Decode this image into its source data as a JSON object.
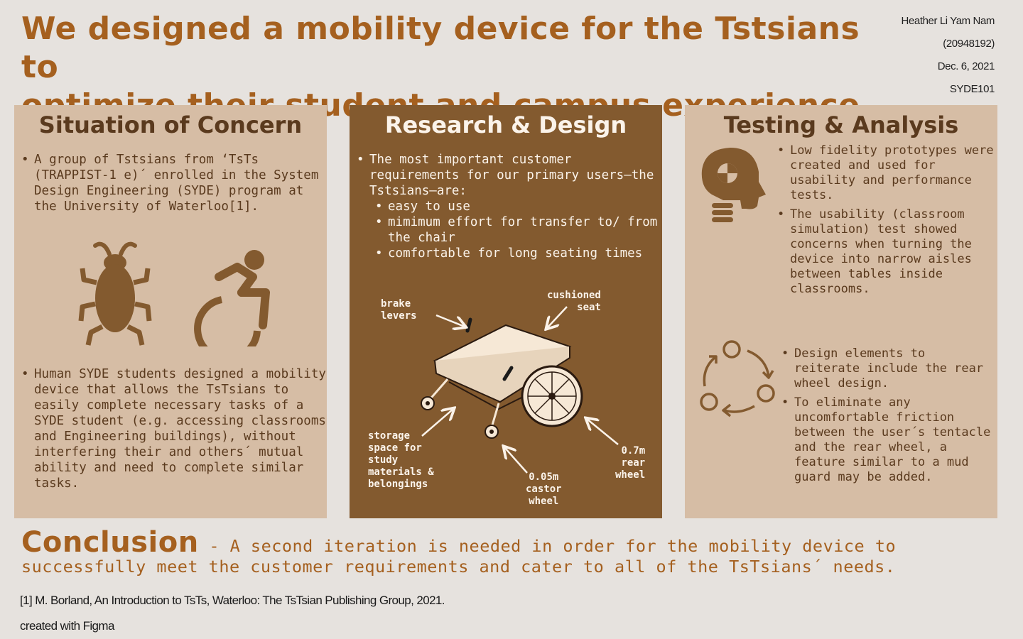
{
  "title": {
    "line1": "We designed a mobility device for the Tstsians to",
    "line2": "optimize their student and campus experience"
  },
  "author": {
    "name": "Heather Li Yam Nam",
    "id": "(20948192)",
    "date": "Dec. 6, 2021",
    "course": "SYDE101"
  },
  "situation": {
    "heading": "Situation of Concern",
    "bullet1": "A group of Tstsians from ‘TsTs (TRAPPIST-1 e)´ enrolled in the System Design Engineering (SYDE) program at the University of Waterloo[1].",
    "bullet2": "Human SYDE students designed a mobility device that allows the TsTsians to easily complete necessary tasks of a SYDE student (e.g. accessing classrooms and Engineering buildings), without interfering their and others´ mutual ability and need to complete similar tasks.",
    "icons": [
      "bug-icon",
      "wheelchair-icon"
    ],
    "icon_color": "#835a2f"
  },
  "research": {
    "heading": "Research & Design",
    "intro": "The most important customer requirements for our primary users—the Tstsians—are:",
    "requirements": [
      "easy to use",
      "mimimum effort for transfer to/ from the chair",
      "comfortable for long seating times"
    ],
    "labels": {
      "brake": "brake\nlevers",
      "seat": "cushioned\n     seat",
      "storage": "storage\nspace for\nstudy\nmaterials &\nbelongings",
      "castor": "0.05m\ncastor\nwheel",
      "rear": "0.7m\nrear\nwheel"
    }
  },
  "testing": {
    "heading": "Testing & Analysis",
    "bullets1": [
      " Low fidelity prototypes were created and used for usability and performance tests.",
      "The usability (classroom simulation) test showed concerns when turning the device into narrow aisles between tables inside classrooms."
    ],
    "bullets2": [
      " Design elements to reiterate include the rear wheel design.",
      "To eliminate any uncomfortable friction between the user´s tentacle and the rear wheel, a feature similar to a mud guard may be added."
    ]
  },
  "conclusion": {
    "heading": "Conclusion",
    "text": " - A second iteration is needed in order for the mobility device to successfully meet the customer requirements and cater to all of the TsTsians´ needs."
  },
  "reference": "[1] M. Borland, An Introduction to TsTs, Waterloo: The TsTsian Publishing Group, 2021.",
  "footer": "created with Figma",
  "colors": {
    "background": "#e6e2de",
    "accent": "#a5601f",
    "panel_light": "#d6bda5",
    "panel_dark": "#835a2f"
  }
}
